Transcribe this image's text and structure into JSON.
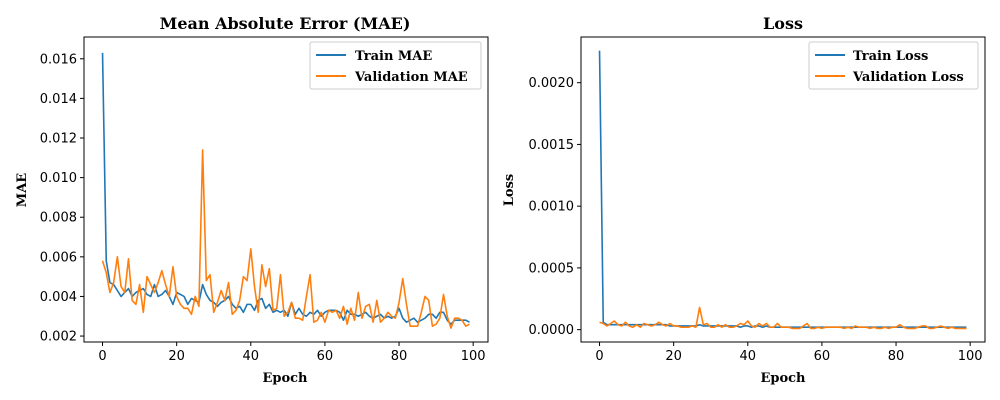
{
  "colors": {
    "train": "#1f77b4",
    "validation": "#ff7f0e"
  },
  "chart_data": [
    {
      "type": "line",
      "title": "Mean Absolute Error (MAE)",
      "xlabel": "Epoch",
      "ylabel": "MAE",
      "xlim": [
        -5,
        104
      ],
      "ylim": [
        0.0017,
        0.0171
      ],
      "xticks": [
        0,
        20,
        40,
        60,
        80,
        100
      ],
      "xtick_labels": [
        "0",
        "20",
        "40",
        "60",
        "80",
        "100"
      ],
      "yticks": [
        0.002,
        0.004,
        0.006,
        0.008,
        0.01,
        0.012,
        0.014,
        0.016
      ],
      "ytick_labels": [
        "0.002",
        "0.004",
        "0.006",
        "0.008",
        "0.010",
        "0.012",
        "0.014",
        "0.016"
      ],
      "legend_position": "top-right",
      "grid": false,
      "series": [
        {
          "name": "Train MAE",
          "color": "#1f77b4",
          "x": [
            0,
            1,
            2,
            3,
            4,
            5,
            6,
            7,
            8,
            9,
            10,
            11,
            12,
            13,
            14,
            15,
            16,
            17,
            18,
            19,
            20,
            21,
            22,
            23,
            24,
            25,
            26,
            27,
            28,
            29,
            30,
            31,
            32,
            33,
            34,
            35,
            36,
            37,
            38,
            39,
            40,
            41,
            42,
            43,
            44,
            45,
            46,
            47,
            48,
            49,
            50,
            51,
            52,
            53,
            54,
            55,
            56,
            57,
            58,
            59,
            60,
            61,
            62,
            63,
            64,
            65,
            66,
            67,
            68,
            69,
            70,
            71,
            72,
            73,
            74,
            75,
            76,
            77,
            78,
            79,
            80,
            81,
            82,
            83,
            84,
            85,
            86,
            87,
            88,
            89,
            90,
            91,
            92,
            93,
            94,
            95,
            96,
            97,
            98,
            99
          ],
          "values": [
            0.0163,
            0.0058,
            0.0047,
            0.0046,
            0.0043,
            0.004,
            0.0042,
            0.0044,
            0.004,
            0.0042,
            0.0043,
            0.0044,
            0.0041,
            0.004,
            0.0046,
            0.004,
            0.0041,
            0.0043,
            0.004,
            0.0036,
            0.0042,
            0.0041,
            0.004,
            0.0036,
            0.0039,
            0.0038,
            0.0037,
            0.0046,
            0.0041,
            0.0038,
            0.0037,
            0.0035,
            0.0037,
            0.0038,
            0.004,
            0.0036,
            0.0034,
            0.0035,
            0.0032,
            0.0036,
            0.0036,
            0.0033,
            0.0038,
            0.0039,
            0.0034,
            0.0036,
            0.0032,
            0.0033,
            0.0032,
            0.0033,
            0.003,
            0.0037,
            0.0031,
            0.0034,
            0.0031,
            0.003,
            0.0032,
            0.0031,
            0.0033,
            0.003,
            0.0032,
            0.0033,
            0.0033,
            0.0033,
            0.0032,
            0.0028,
            0.0033,
            0.0031,
            0.0031,
            0.003,
            0.0031,
            0.0032,
            0.003,
            0.0029,
            0.003,
            0.0031,
            0.0029,
            0.003,
            0.0029,
            0.003,
            0.0034,
            0.0029,
            0.0027,
            0.0028,
            0.0029,
            0.0027,
            0.0028,
            0.0029,
            0.0031,
            0.0031,
            0.0029,
            0.0032,
            0.0032,
            0.0028,
            0.0026,
            0.0028,
            0.0028,
            0.0028,
            0.0028,
            0.0027
          ]
        },
        {
          "name": "Validation MAE",
          "color": "#ff7f0e",
          "x": [
            0,
            1,
            2,
            3,
            4,
            5,
            6,
            7,
            8,
            9,
            10,
            11,
            12,
            13,
            14,
            15,
            16,
            17,
            18,
            19,
            20,
            21,
            22,
            23,
            24,
            25,
            26,
            27,
            28,
            29,
            30,
            31,
            32,
            33,
            34,
            35,
            36,
            37,
            38,
            39,
            40,
            41,
            42,
            43,
            44,
            45,
            46,
            47,
            48,
            49,
            50,
            51,
            52,
            53,
            54,
            55,
            56,
            57,
            58,
            59,
            60,
            61,
            62,
            63,
            64,
            65,
            66,
            67,
            68,
            69,
            70,
            71,
            72,
            73,
            74,
            75,
            76,
            77,
            78,
            79,
            80,
            81,
            82,
            83,
            84,
            85,
            86,
            87,
            88,
            89,
            90,
            91,
            92,
            93,
            94,
            95,
            96,
            97,
            98,
            99
          ],
          "values": [
            0.0058,
            0.0052,
            0.0042,
            0.0047,
            0.006,
            0.0045,
            0.0042,
            0.0059,
            0.0038,
            0.0036,
            0.0046,
            0.0032,
            0.005,
            0.0046,
            0.0042,
            0.0047,
            0.0053,
            0.0046,
            0.004,
            0.0055,
            0.004,
            0.0036,
            0.0034,
            0.0034,
            0.0031,
            0.004,
            0.0035,
            0.0114,
            0.0048,
            0.0051,
            0.0032,
            0.0037,
            0.0043,
            0.0038,
            0.0047,
            0.0031,
            0.0033,
            0.0038,
            0.005,
            0.0048,
            0.0064,
            0.0045,
            0.0032,
            0.0056,
            0.0045,
            0.0054,
            0.0033,
            0.0034,
            0.0051,
            0.003,
            0.0032,
            0.0037,
            0.0029,
            0.0029,
            0.0028,
            0.004,
            0.0051,
            0.0027,
            0.0028,
            0.0032,
            0.0027,
            0.0033,
            0.0032,
            0.0033,
            0.0029,
            0.0035,
            0.0026,
            0.0034,
            0.0028,
            0.0042,
            0.0029,
            0.0035,
            0.0036,
            0.0027,
            0.0038,
            0.0027,
            0.0029,
            0.0032,
            0.003,
            0.0029,
            0.0037,
            0.0049,
            0.0036,
            0.0025,
            0.0025,
            0.0025,
            0.0032,
            0.004,
            0.0038,
            0.0025,
            0.0026,
            0.0029,
            0.0041,
            0.003,
            0.0024,
            0.0029,
            0.0029,
            0.0028,
            0.0025,
            0.0026
          ]
        }
      ]
    },
    {
      "type": "line",
      "title": "Loss",
      "xlabel": "Epoch",
      "ylabel": "Loss",
      "xlim": [
        -5,
        104
      ],
      "ylim": [
        -0.0001,
        0.00237
      ],
      "xticks": [
        0,
        20,
        40,
        60,
        80,
        100
      ],
      "xtick_labels": [
        "0",
        "20",
        "40",
        "60",
        "80",
        "100"
      ],
      "yticks": [
        0.0,
        0.0005,
        0.001,
        0.0015,
        0.002
      ],
      "ytick_labels": [
        "0.0000",
        "0.0005",
        "0.0010",
        "0.0015",
        "0.0020"
      ],
      "legend_position": "top-right",
      "grid": false,
      "series": [
        {
          "name": "Train Loss",
          "color": "#1f77b4",
          "x": [
            0,
            1,
            2,
            3,
            4,
            5,
            6,
            7,
            8,
            9,
            10,
            11,
            12,
            13,
            14,
            15,
            16,
            17,
            18,
            19,
            20,
            21,
            22,
            23,
            24,
            25,
            26,
            27,
            28,
            29,
            30,
            31,
            32,
            33,
            34,
            35,
            36,
            37,
            38,
            39,
            40,
            41,
            42,
            43,
            44,
            45,
            46,
            47,
            48,
            49,
            50,
            51,
            52,
            53,
            54,
            55,
            56,
            57,
            58,
            59,
            60,
            61,
            62,
            63,
            64,
            65,
            66,
            67,
            68,
            69,
            70,
            71,
            72,
            73,
            74,
            75,
            76,
            77,
            78,
            79,
            80,
            81,
            82,
            83,
            84,
            85,
            86,
            87,
            88,
            89,
            90,
            91,
            92,
            93,
            94,
            95,
            96,
            97,
            98,
            99
          ],
          "values": [
            0.00226,
            6e-05,
            4e-05,
            4e-05,
            4e-05,
            4e-05,
            4e-05,
            4e-05,
            4e-05,
            4e-05,
            4e-05,
            4e-05,
            4e-05,
            4e-05,
            4e-05,
            4e-05,
            4e-05,
            4e-05,
            4e-05,
            3e-05,
            3e-05,
            3e-05,
            3e-05,
            3e-05,
            3e-05,
            3e-05,
            3e-05,
            4e-05,
            3e-05,
            3e-05,
            3e-05,
            3e-05,
            3e-05,
            3e-05,
            3e-05,
            3e-05,
            3e-05,
            3e-05,
            2e-05,
            3e-05,
            3e-05,
            2e-05,
            3e-05,
            3e-05,
            2e-05,
            3e-05,
            2e-05,
            2e-05,
            2e-05,
            2e-05,
            2e-05,
            2e-05,
            2e-05,
            2e-05,
            2e-05,
            2e-05,
            2e-05,
            2e-05,
            2e-05,
            2e-05,
            2e-05,
            2e-05,
            2e-05,
            2e-05,
            2e-05,
            2e-05,
            2e-05,
            2e-05,
            2e-05,
            2e-05,
            2e-05,
            2e-05,
            2e-05,
            2e-05,
            2e-05,
            2e-05,
            2e-05,
            2e-05,
            2e-05,
            2e-05,
            2e-05,
            2e-05,
            2e-05,
            2e-05,
            2e-05,
            2e-05,
            2e-05,
            2e-05,
            2e-05,
            2e-05,
            2e-05,
            2e-05,
            2e-05,
            2e-05,
            2e-05,
            2e-05,
            2e-05,
            2e-05,
            2e-05,
            2e-05
          ]
        },
        {
          "name": "Validation Loss",
          "color": "#ff7f0e",
          "x": [
            0,
            1,
            2,
            3,
            4,
            5,
            6,
            7,
            8,
            9,
            10,
            11,
            12,
            13,
            14,
            15,
            16,
            17,
            18,
            19,
            20,
            21,
            22,
            23,
            24,
            25,
            26,
            27,
            28,
            29,
            30,
            31,
            32,
            33,
            34,
            35,
            36,
            37,
            38,
            39,
            40,
            41,
            42,
            43,
            44,
            45,
            46,
            47,
            48,
            49,
            50,
            51,
            52,
            53,
            54,
            55,
            56,
            57,
            58,
            59,
            60,
            61,
            62,
            63,
            64,
            65,
            66,
            67,
            68,
            69,
            70,
            71,
            72,
            73,
            74,
            75,
            76,
            77,
            78,
            79,
            80,
            81,
            82,
            83,
            84,
            85,
            86,
            87,
            88,
            89,
            90,
            91,
            92,
            93,
            94,
            95,
            96,
            97,
            98,
            99
          ],
          "values": [
            6e-05,
            5e-05,
            3e-05,
            5e-05,
            7e-05,
            4e-05,
            3e-05,
            6e-05,
            3e-05,
            2e-05,
            4e-05,
            2e-05,
            5e-05,
            4e-05,
            3e-05,
            4e-05,
            6e-05,
            4e-05,
            3e-05,
            5e-05,
            3e-05,
            3e-05,
            2e-05,
            2e-05,
            2e-05,
            3e-05,
            2e-05,
            0.00018,
            4e-05,
            5e-05,
            2e-05,
            2e-05,
            4e-05,
            2e-05,
            4e-05,
            2e-05,
            2e-05,
            3e-05,
            5e-05,
            4e-05,
            7e-05,
            3e-05,
            2e-05,
            5e-05,
            3e-05,
            5e-05,
            2e-05,
            2e-05,
            5e-05,
            2e-05,
            2e-05,
            2e-05,
            1e-05,
            1e-05,
            1e-05,
            3e-05,
            5e-05,
            1e-05,
            1e-05,
            2e-05,
            1e-05,
            2e-05,
            2e-05,
            2e-05,
            2e-05,
            2e-05,
            1e-05,
            2e-05,
            1e-05,
            3e-05,
            2e-05,
            2e-05,
            2e-05,
            1e-05,
            2e-05,
            1e-05,
            1e-05,
            2e-05,
            1e-05,
            2e-05,
            2e-05,
            4e-05,
            2e-05,
            1e-05,
            1e-05,
            1e-05,
            2e-05,
            3e-05,
            3e-05,
            1e-05,
            1e-05,
            2e-05,
            3e-05,
            2e-05,
            1e-05,
            2e-05,
            1e-05,
            1e-05,
            1e-05,
            1e-05
          ]
        }
      ]
    }
  ]
}
